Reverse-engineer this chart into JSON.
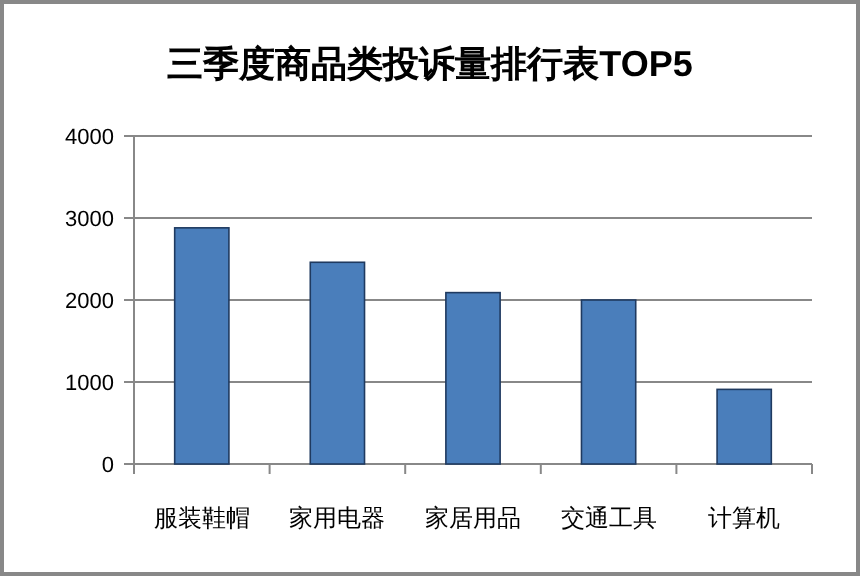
{
  "chart_data": {
    "type": "bar",
    "title": "三季度商品类投诉量排行表TOP5",
    "categories": [
      "服装鞋帽",
      "家用电器",
      "家居用品",
      "交通工具",
      "计算机"
    ],
    "values": [
      2880,
      2460,
      2090,
      2000,
      910
    ],
    "color": "#4a7ebb",
    "ylim": [
      0,
      4000
    ],
    "yticks": [
      0,
      1000,
      2000,
      3000,
      4000
    ],
    "grid": "y"
  }
}
